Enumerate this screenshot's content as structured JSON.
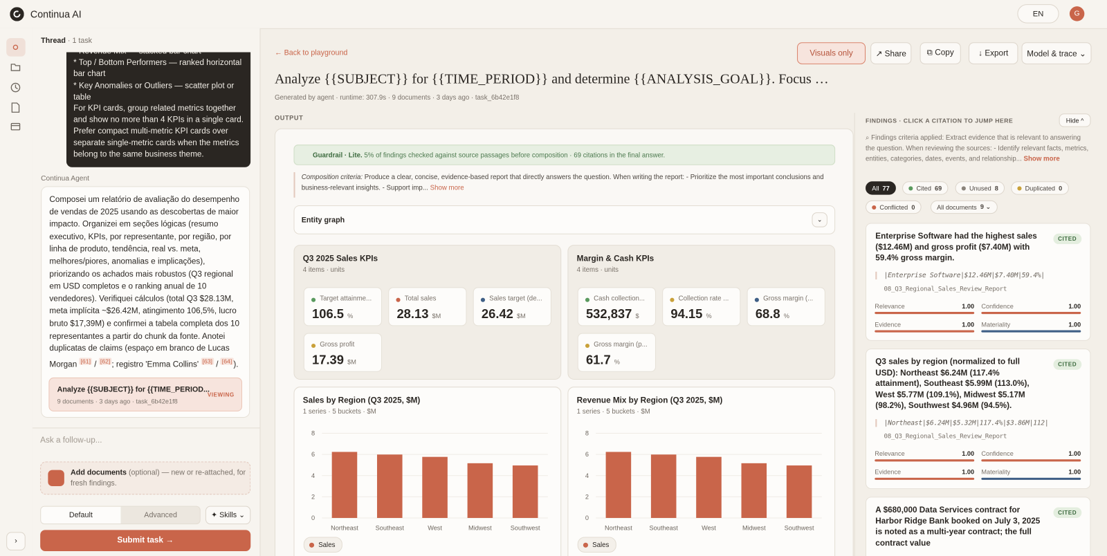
{
  "app": {
    "name": "Continua AI",
    "language": "EN",
    "avatar": "G"
  },
  "thread": {
    "title": "Thread",
    "meta": "1 task",
    "user_message": [
      "* Revenue Mix — stacked bar chart",
      "* Top / Bottom Performers — ranked horizontal bar chart",
      "* Key Anomalies or Outliers — scatter plot or table",
      "For KPI cards, group related metrics together and show no more than 4 KPIs in a single card.",
      "Prefer compact multi-metric KPI cards over separate single-metric cards when the metrics belong to the same business theme."
    ],
    "agent_label": "Continua Agent",
    "agent_message": [
      "Composei um relatório de avaliação do desempenho de vendas de 2025 usando as descobertas de maior impacto. Organizei em seções lógicas (resumo executivo, KPIs, por representante, por região, por linha de produto, tendência, real vs. meta, melhores/piores, anomalias e implicações), priorizando os achados mais robustos (Q3 regional em USD completos e o ranking anual de 10 vendedores). Verifiquei cálculos (total Q3 $28.13M, meta implícita ~$26.42M, atingimento 106,5%, lucro bruto $17,39M) e confirmei a tabela completa dos 10 representantes a partir do chunk da fonte. Anotei duplicatas de claims (espaço em branco de Lucas Morgan ",
      "[61]",
      " / ",
      "[62]",
      "; registro 'Emma Collins' ",
      "[63]",
      " / ",
      "[64]",
      ")."
    ],
    "task_card": {
      "title": "Analyze {{SUBJECT}} for {{TIME_PERIOD...",
      "meta": "9 documents · 3 days ago · task_6b42e1f8",
      "status": "VIEWING"
    },
    "followup_placeholder": "Ask a follow-up...",
    "add_documents": {
      "title": "Add documents",
      "note": "(optional) — new or re-attached, for fresh findings."
    },
    "modes": [
      "Default",
      "Advanced"
    ],
    "skills": "✦ Skills ⌄",
    "submit": "Submit task →"
  },
  "main": {
    "back": "← Back to playground",
    "actions": [
      "Visuals only",
      "↗ Share",
      "⧉ Copy",
      "↓ Export",
      "Model & trace ⌄"
    ],
    "title": "Analyze {{SUBJECT}} for {{TIME_PERIOD}} and determine {{ANALYSIS_GOAL}}. Focus …",
    "meta": "Generated by agent · runtime: 307.9s · 9 documents · 3 days ago · task_6b42e1f8",
    "output_label": "OUTPUT",
    "guardrail": {
      "label": "Guardrail · Lite.",
      "text": "5% of findings checked against source passages before composition · 69 citations in the final answer."
    },
    "composition": {
      "label": "Composition criteria:",
      "text": "Produce a clear, concise, evidence-based report that directly answers the question. When writing the report: - Prioritize the most important conclusions and business-relevant insights. - Support imp...",
      "more": "Show more"
    },
    "entity_graph": "Entity graph",
    "kpi_cards": [
      {
        "title": "Q3 2025 Sales KPIs",
        "meta": "4 items · units",
        "items": [
          {
            "label": "Target attainme...",
            "value": "106.5",
            "unit": "%",
            "color": "#5a9a5e"
          },
          {
            "label": "Total sales",
            "value": "28.13",
            "unit": "$M",
            "color": "#c9654a"
          },
          {
            "label": "Sales target (de...",
            "value": "26.42",
            "unit": "$M",
            "color": "#3f5f86"
          },
          {
            "label": "Gross profit",
            "value": "17.39",
            "unit": "$M",
            "color": "#c9a13a"
          }
        ]
      },
      {
        "title": "Margin & Cash KPIs",
        "meta": "4 items · units",
        "items": [
          {
            "label": "Cash collection...",
            "value": "532,837",
            "unit": "$",
            "color": "#5a9a5e"
          },
          {
            "label": "Collection rate ...",
            "value": "94.15",
            "unit": "%",
            "color": "#c9a13a"
          },
          {
            "label": "Gross margin (...",
            "value": "68.8",
            "unit": "%",
            "color": "#3f5f86"
          },
          {
            "label": "Gross margin (p...",
            "value": "61.7",
            "unit": "%",
            "color": "#c9a13a"
          }
        ]
      }
    ],
    "charts": [
      {
        "type": "bar",
        "title": "Sales by Region (Q3 2025, $M)",
        "subtitle": "1 series · 5 buckets · $M",
        "categories": [
          "Northeast",
          "Southeast",
          "West",
          "Midwest",
          "Southwest"
        ],
        "series": [
          {
            "name": "Sales",
            "color": "#c9654a",
            "values": [
              6.24,
              5.99,
              5.77,
              5.17,
              4.96
            ]
          }
        ],
        "ylim": [
          0,
          8
        ],
        "yticks": [
          0,
          2,
          4,
          6,
          8
        ],
        "grid": true
      },
      {
        "type": "bar",
        "title": "Revenue Mix by Region (Q3 2025, $M)",
        "subtitle": "1 series · 5 buckets · $M",
        "categories": [
          "Northeast",
          "Southeast",
          "West",
          "Midwest",
          "Southwest"
        ],
        "series": [
          {
            "name": "Sales",
            "color": "#c9654a",
            "values": [
              6.24,
              5.99,
              5.77,
              5.17,
              4.96
            ]
          }
        ],
        "ylim": [
          0,
          8
        ],
        "yticks": [
          0,
          2,
          4,
          6,
          8
        ],
        "grid": true
      }
    ]
  },
  "findings": {
    "header": "FINDINGS · CLICK A CITATION TO JUMP HERE",
    "hide": "Hide ^",
    "criteria": "⌕ Findings criteria applied: Extract evidence that is relevant to answering the question. When reviewing the sources: - Identify relevant facts, metrics, entities, categories, dates, events, and relationship...",
    "more": "Show more",
    "filters": [
      {
        "label": "All",
        "count": "77"
      },
      {
        "label": "Cited",
        "count": "69"
      },
      {
        "label": "Unused",
        "count": "8"
      },
      {
        "label": "Duplicated",
        "count": "0"
      },
      {
        "label": "Conflicted",
        "count": "0"
      },
      {
        "label": "All documents",
        "count": "9 ⌄"
      }
    ],
    "items": [
      {
        "text": "Enterprise Software had the highest sales ($12.46M) and gross profit ($7.40M) with 59.4% gross margin.",
        "status": "CITED",
        "quote": "|Enterprise Software|$12.46M|$7.40M|59.4%|",
        "source": "08_Q3_Regional_Sales_Review_Report",
        "scores": [
          {
            "label": "Relevance",
            "value": 1,
            "value_label": "1.00",
            "color": "#c9654a"
          },
          {
            "label": "Confidence",
            "value": 1,
            "value_label": "1.00",
            "color": "#c9654a"
          },
          {
            "label": "Evidence",
            "value": 1,
            "value_label": "1.00",
            "color": "#c9654a"
          },
          {
            "label": "Materiality",
            "value": 1,
            "value_label": "1.00",
            "color": "#3f5f86"
          }
        ]
      },
      {
        "text": "Q3 sales by region (normalized to full USD): Northeast $6.24M (117.4% attainment), Southeast $5.99M (113.0%), West $5.77M (109.1%), Midwest $5.17M (98.2%), Southwest $4.96M (94.5%).",
        "status": "CITED",
        "quote": "|Northeast|$6.24M|$5.32M|117.4%|$3.86M|112|",
        "source": "08_Q3_Regional_Sales_Review_Report",
        "scores": [
          {
            "label": "Relevance",
            "value": 1,
            "value_label": "1.00",
            "color": "#c9654a"
          },
          {
            "label": "Confidence",
            "value": 1,
            "value_label": "1.00",
            "color": "#c9654a"
          },
          {
            "label": "Evidence",
            "value": 1,
            "value_label": "1.00",
            "color": "#c9654a"
          },
          {
            "label": "Materiality",
            "value": 1,
            "value_label": "1.00",
            "color": "#3f5f86"
          }
        ]
      },
      {
        "text": "A $680,000 Data Services contract for Harbor Ridge Bank booked on July 3, 2025 is noted as a multi-year contract; the full contract value",
        "status": "CITED"
      }
    ]
  }
}
